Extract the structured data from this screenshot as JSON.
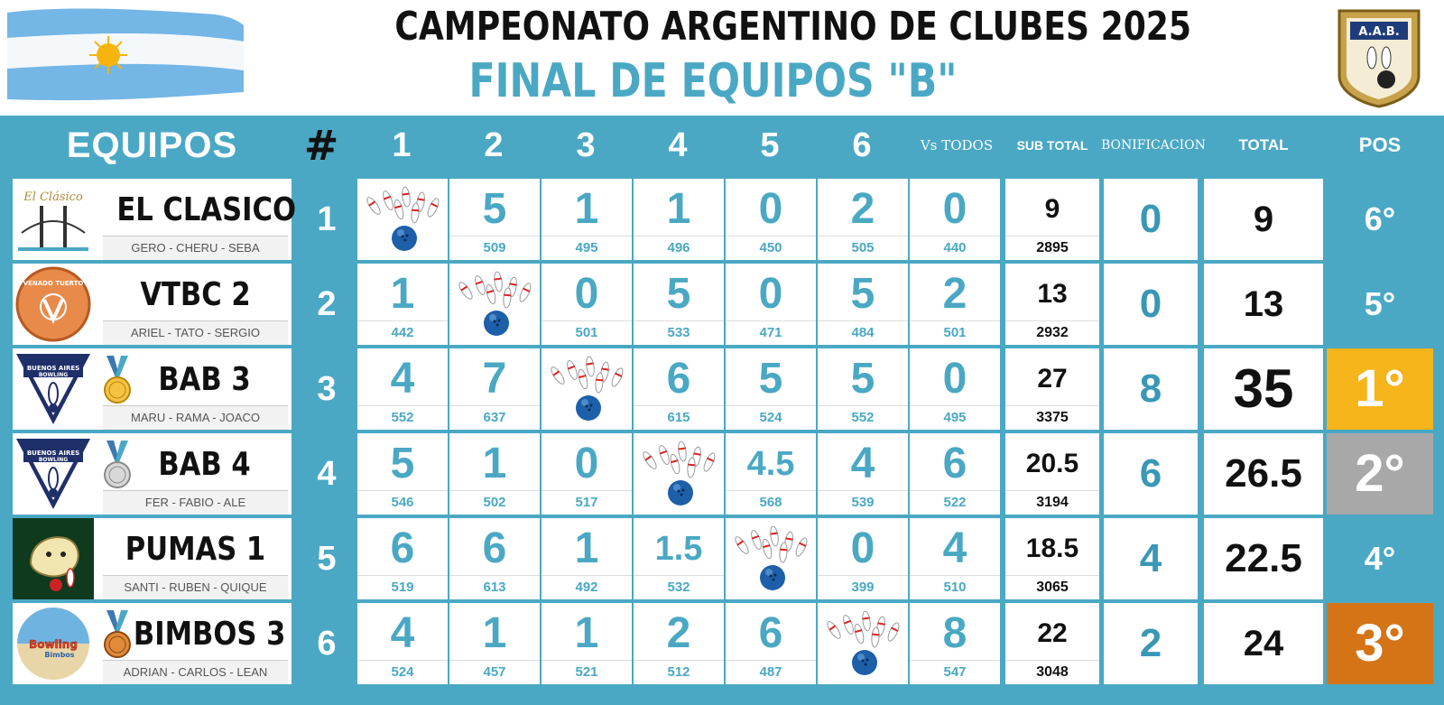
{
  "header": {
    "title": "CAMPEONATO ARGENTINO DE CLUBES 2025",
    "subtitle": "FINAL DE EQUIPOS \"B\"",
    "logo_text": "A.A.B."
  },
  "columns": {
    "teams": "EQUIPOS",
    "hash": "#",
    "opponents": [
      "1",
      "2",
      "3",
      "4",
      "5",
      "6"
    ],
    "vs_todos": "Vs TODOS",
    "subtotal": "SUB TOTAL",
    "bonificacion": "BONIFICACION",
    "total": "TOTAL",
    "pos": "POS"
  },
  "colors": {
    "board": "#4aa8c4",
    "gold": "#f5b51b",
    "silver": "#a8a8a8",
    "bronze": "#d47417"
  },
  "teams": [
    {
      "number": "1",
      "name": "EL CLASICO",
      "players": "GERO - CHERU - SEBA",
      "logo_text": "El Clásico",
      "medal": "",
      "results": [
        {
          "pts": "",
          "pins": ""
        },
        {
          "pts": "5",
          "pins": "509"
        },
        {
          "pts": "1",
          "pins": "495"
        },
        {
          "pts": "1",
          "pins": "496"
        },
        {
          "pts": "0",
          "pins": "450"
        },
        {
          "pts": "2",
          "pins": "505"
        },
        {
          "pts": "0",
          "pins": "440"
        }
      ],
      "subtotal": "9",
      "subtotal_pins": "2895",
      "bonus": "0",
      "total": "9",
      "pos": "6°",
      "pos_color": "blue"
    },
    {
      "number": "2",
      "name": "VTBC 2",
      "players": "ARIEL - TATO - SERGIO",
      "logo_text": "VENADO TUERTO",
      "medal": "",
      "results": [
        {
          "pts": "1",
          "pins": "442"
        },
        {
          "pts": "",
          "pins": ""
        },
        {
          "pts": "0",
          "pins": "501"
        },
        {
          "pts": "5",
          "pins": "533"
        },
        {
          "pts": "0",
          "pins": "471"
        },
        {
          "pts": "5",
          "pins": "484"
        },
        {
          "pts": "2",
          "pins": "501"
        }
      ],
      "subtotal": "13",
      "subtotal_pins": "2932",
      "bonus": "0",
      "total": "13",
      "pos": "5°",
      "pos_color": "blue"
    },
    {
      "number": "3",
      "name": "BAB 3",
      "players": "MARU - RAMA - JOACO",
      "logo_text": "BUENOS AIRES BOWLING",
      "medal": "gold",
      "results": [
        {
          "pts": "4",
          "pins": "552"
        },
        {
          "pts": "7",
          "pins": "637"
        },
        {
          "pts": "",
          "pins": ""
        },
        {
          "pts": "6",
          "pins": "615"
        },
        {
          "pts": "5",
          "pins": "524"
        },
        {
          "pts": "5",
          "pins": "552"
        },
        {
          "pts": "0",
          "pins": "495"
        }
      ],
      "subtotal": "27",
      "subtotal_pins": "3375",
      "bonus": "8",
      "total": "35",
      "pos": "1°",
      "pos_color": "gold"
    },
    {
      "number": "4",
      "name": "BAB 4",
      "players": "FER - FABIO - ALE",
      "logo_text": "BUENOS AIRES BOWLING",
      "medal": "silver",
      "results": [
        {
          "pts": "5",
          "pins": "546"
        },
        {
          "pts": "1",
          "pins": "502"
        },
        {
          "pts": "0",
          "pins": "517"
        },
        {
          "pts": "",
          "pins": ""
        },
        {
          "pts": "4.5",
          "pins": "568"
        },
        {
          "pts": "4",
          "pins": "539"
        },
        {
          "pts": "6",
          "pins": "522"
        }
      ],
      "subtotal": "20.5",
      "subtotal_pins": "3194",
      "bonus": "6",
      "total": "26.5",
      "pos": "2°",
      "pos_color": "silver"
    },
    {
      "number": "5",
      "name": "PUMAS 1",
      "players": "SANTI - RUBEN - QUIQUE",
      "logo_text": "",
      "medal": "",
      "results": [
        {
          "pts": "6",
          "pins": "519"
        },
        {
          "pts": "6",
          "pins": "613"
        },
        {
          "pts": "1",
          "pins": "492"
        },
        {
          "pts": "1.5",
          "pins": "532"
        },
        {
          "pts": "",
          "pins": ""
        },
        {
          "pts": "0",
          "pins": "399"
        },
        {
          "pts": "4",
          "pins": "510"
        }
      ],
      "subtotal": "18.5",
      "subtotal_pins": "3065",
      "bonus": "4",
      "total": "22.5",
      "pos": "4°",
      "pos_color": "blue"
    },
    {
      "number": "6",
      "name": "BIMBOS 3",
      "players": "ADRIAN - CARLOS - LEAN",
      "logo_text": "Bowling Bimbos",
      "medal": "bronze",
      "results": [
        {
          "pts": "4",
          "pins": "524"
        },
        {
          "pts": "1",
          "pins": "457"
        },
        {
          "pts": "1",
          "pins": "521"
        },
        {
          "pts": "2",
          "pins": "512"
        },
        {
          "pts": "6",
          "pins": "487"
        },
        {
          "pts": "",
          "pins": ""
        },
        {
          "pts": "8",
          "pins": "547"
        }
      ],
      "subtotal": "22",
      "subtotal_pins": "3048",
      "bonus": "2",
      "total": "24",
      "pos": "3°",
      "pos_color": "bronze"
    }
  ]
}
